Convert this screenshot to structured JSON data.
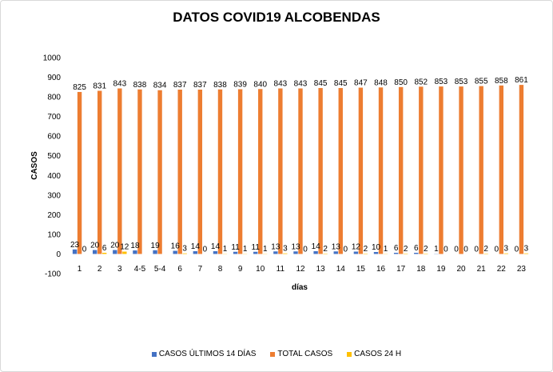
{
  "chart_data": {
    "type": "bar",
    "title": "DATOS COVID19 ALCOBENDAS",
    "xlabel": "días",
    "ylabel": "CASOS",
    "ylim": [
      -100,
      1000
    ],
    "yticks": [
      -100,
      0,
      100,
      200,
      300,
      400,
      500,
      600,
      700,
      800,
      900,
      1000
    ],
    "grid": false,
    "legend_position": "bottom",
    "categories": [
      "1",
      "2",
      "3",
      "4-5",
      "5-4",
      "6",
      "7",
      "8",
      "9",
      "10",
      "11",
      "12",
      "13",
      "14",
      "15",
      "16",
      "17",
      "18",
      "19",
      "20",
      "21",
      "22",
      "23"
    ],
    "series": [
      {
        "name": "CASOS ÚLTIMOS 14 DÍAS",
        "color": "#4472C4",
        "values": [
          23,
          20,
          20,
          18,
          19,
          16,
          14,
          14,
          11,
          11,
          13,
          13,
          14,
          13,
          12,
          10,
          6,
          6,
          1,
          0,
          0,
          0,
          0
        ]
      },
      {
        "name": "TOTAL CASOS",
        "color": "#ED7D31",
        "values": [
          825,
          831,
          843,
          838,
          834,
          837,
          837,
          838,
          839,
          840,
          843,
          843,
          845,
          845,
          847,
          848,
          850,
          852,
          853,
          853,
          855,
          858,
          861
        ]
      },
      {
        "name": "CASOS 24 H",
        "color": "#FFC000",
        "values": [
          0,
          6,
          12,
          null,
          null,
          3,
          0,
          1,
          1,
          1,
          3,
          0,
          2,
          0,
          2,
          1,
          2,
          2,
          0,
          0,
          2,
          3,
          3
        ]
      }
    ]
  }
}
